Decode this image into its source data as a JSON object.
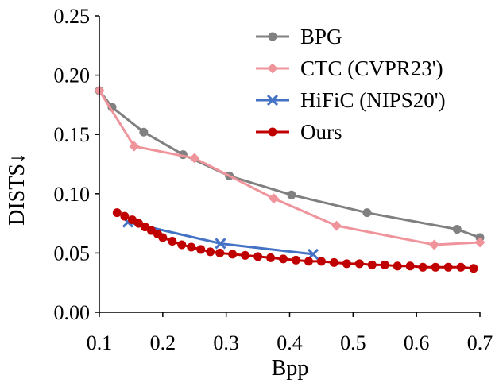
{
  "chart_data": {
    "type": "line",
    "title": "",
    "xlabel": "Bpp",
    "ylabel": "DISTS↓",
    "xlim": [
      0.1,
      0.7
    ],
    "ylim": [
      0.0,
      0.25
    ],
    "x_ticks": [
      "0.1",
      "0.2",
      "0.3",
      "0.4",
      "0.5",
      "0.6",
      "0.7"
    ],
    "y_ticks": [
      "0.00",
      "0.05",
      "0.10",
      "0.15",
      "0.20",
      "0.25"
    ],
    "grid": false,
    "legend_position": "top-right",
    "series": [
      {
        "name": "BPG",
        "color": "#808080",
        "marker": "circle",
        "x": [
          0.1,
          0.12,
          0.17,
          0.232,
          0.305,
          0.403,
          0.522,
          0.664,
          0.7
        ],
        "y": [
          0.187,
          0.173,
          0.152,
          0.133,
          0.115,
          0.099,
          0.084,
          0.07,
          0.063
        ]
      },
      {
        "name": "CTC (CVPR23')",
        "color": "#f0949c",
        "marker": "diamond",
        "x": [
          0.1,
          0.155,
          0.25,
          0.375,
          0.474,
          0.628,
          0.7
        ],
        "y": [
          0.187,
          0.14,
          0.13,
          0.096,
          0.073,
          0.057,
          0.059
        ]
      },
      {
        "name": "HiFiC (NIPS20')",
        "color": "#4472c4",
        "marker": "x",
        "x": [
          0.145,
          0.291,
          0.437
        ],
        "y": [
          0.076,
          0.058,
          0.049
        ]
      },
      {
        "name": "Ours",
        "color": "#c00000",
        "marker": "circle",
        "x": [
          0.128,
          0.14,
          0.152,
          0.162,
          0.172,
          0.182,
          0.192,
          0.2,
          0.215,
          0.23,
          0.245,
          0.26,
          0.275,
          0.29,
          0.31,
          0.33,
          0.35,
          0.37,
          0.39,
          0.41,
          0.43,
          0.45,
          0.47,
          0.49,
          0.51,
          0.53,
          0.55,
          0.57,
          0.59,
          0.61,
          0.63,
          0.65,
          0.67,
          0.69
        ],
        "y": [
          0.084,
          0.081,
          0.078,
          0.075,
          0.072,
          0.069,
          0.066,
          0.063,
          0.06,
          0.057,
          0.055,
          0.053,
          0.051,
          0.05,
          0.049,
          0.048,
          0.047,
          0.046,
          0.045,
          0.044,
          0.043,
          0.043,
          0.042,
          0.041,
          0.041,
          0.04,
          0.04,
          0.039,
          0.039,
          0.038,
          0.038,
          0.038,
          0.038,
          0.037
        ]
      }
    ]
  }
}
